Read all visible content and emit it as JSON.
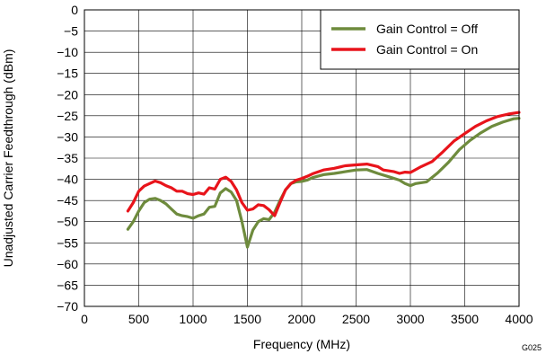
{
  "figure_id": "G025",
  "chart_data": {
    "type": "line",
    "title": "",
    "xlabel": "Frequency (MHz)",
    "ylabel": "Unadjusted Carrier Feedthrough (dBm)",
    "xlim": [
      0,
      4000
    ],
    "ylim": [
      -70,
      0
    ],
    "x_ticks": [
      0,
      500,
      1000,
      1500,
      2000,
      2500,
      3000,
      3500,
      4000
    ],
    "y_ticks": [
      0,
      -5,
      -10,
      -15,
      -20,
      -25,
      -30,
      -35,
      -40,
      -45,
      -50,
      -55,
      -60,
      -65,
      -70
    ],
    "y_tick_labels": [
      "0",
      "−5",
      "−10",
      "−15",
      "−20",
      "−25",
      "−30",
      "−35",
      "−40",
      "−45",
      "−50",
      "−55",
      "−60",
      "−65",
      "−70"
    ],
    "grid": true,
    "legend_position": "top-right",
    "series": [
      {
        "name": "Gain Control = Off",
        "color": "#6e8b3d",
        "points": [
          [
            400,
            -51.8
          ],
          [
            450,
            -50
          ],
          [
            500,
            -47.5
          ],
          [
            550,
            -45.5
          ],
          [
            600,
            -44.7
          ],
          [
            650,
            -44.5
          ],
          [
            700,
            -45
          ],
          [
            750,
            -45.8
          ],
          [
            800,
            -47
          ],
          [
            850,
            -48.2
          ],
          [
            900,
            -48.6
          ],
          [
            950,
            -48.8
          ],
          [
            1000,
            -49.2
          ],
          [
            1050,
            -48.6
          ],
          [
            1100,
            -48.2
          ],
          [
            1150,
            -46.6
          ],
          [
            1200,
            -46.4
          ],
          [
            1250,
            -43.2
          ],
          [
            1300,
            -42.2
          ],
          [
            1350,
            -43
          ],
          [
            1400,
            -45
          ],
          [
            1450,
            -50
          ],
          [
            1500,
            -56
          ],
          [
            1550,
            -52
          ],
          [
            1600,
            -50
          ],
          [
            1650,
            -49.3
          ],
          [
            1700,
            -49.5
          ],
          [
            1750,
            -47.8
          ],
          [
            1800,
            -45
          ],
          [
            1850,
            -42.5
          ],
          [
            1900,
            -41
          ],
          [
            1950,
            -40.6
          ],
          [
            2000,
            -40.5
          ],
          [
            2050,
            -40.2
          ],
          [
            2100,
            -39.6
          ],
          [
            2200,
            -38.9
          ],
          [
            2300,
            -38.6
          ],
          [
            2400,
            -38.2
          ],
          [
            2500,
            -37.8
          ],
          [
            2600,
            -37.7
          ],
          [
            2700,
            -38.6
          ],
          [
            2800,
            -39.4
          ],
          [
            2900,
            -40.2
          ],
          [
            2950,
            -41
          ],
          [
            3000,
            -41.5
          ],
          [
            3050,
            -41
          ],
          [
            3150,
            -40.6
          ],
          [
            3250,
            -38.5
          ],
          [
            3350,
            -36
          ],
          [
            3450,
            -33
          ],
          [
            3550,
            -30.8
          ],
          [
            3650,
            -29
          ],
          [
            3750,
            -27.5
          ],
          [
            3850,
            -26.5
          ],
          [
            3950,
            -25.7
          ],
          [
            4000,
            -25.6
          ]
        ]
      },
      {
        "name": "Gain Control = On",
        "color": "#e8141b",
        "points": [
          [
            400,
            -47.5
          ],
          [
            450,
            -45.5
          ],
          [
            500,
            -42.8
          ],
          [
            550,
            -41.6
          ],
          [
            600,
            -41
          ],
          [
            650,
            -40.4
          ],
          [
            700,
            -40.8
          ],
          [
            750,
            -41.5
          ],
          [
            800,
            -42
          ],
          [
            850,
            -42.8
          ],
          [
            900,
            -42.8
          ],
          [
            950,
            -43.4
          ],
          [
            1000,
            -43.6
          ],
          [
            1050,
            -43.2
          ],
          [
            1100,
            -43.5
          ],
          [
            1150,
            -42
          ],
          [
            1200,
            -42.3
          ],
          [
            1250,
            -40
          ],
          [
            1300,
            -39.5
          ],
          [
            1350,
            -40.5
          ],
          [
            1400,
            -42.5
          ],
          [
            1450,
            -45.5
          ],
          [
            1500,
            -47.3
          ],
          [
            1550,
            -47
          ],
          [
            1600,
            -46
          ],
          [
            1650,
            -46.2
          ],
          [
            1700,
            -47.2
          ],
          [
            1750,
            -48.6
          ],
          [
            1800,
            -45.5
          ],
          [
            1850,
            -42.5
          ],
          [
            1900,
            -41
          ],
          [
            1950,
            -40.2
          ],
          [
            2000,
            -39.8
          ],
          [
            2050,
            -39.3
          ],
          [
            2100,
            -38.7
          ],
          [
            2200,
            -37.8
          ],
          [
            2300,
            -37.4
          ],
          [
            2400,
            -36.8
          ],
          [
            2500,
            -36.6
          ],
          [
            2600,
            -36.4
          ],
          [
            2700,
            -37
          ],
          [
            2750,
            -37.8
          ],
          [
            2850,
            -38.2
          ],
          [
            2900,
            -38.6
          ],
          [
            2950,
            -38.3
          ],
          [
            3000,
            -38.4
          ],
          [
            3100,
            -37
          ],
          [
            3200,
            -35.8
          ],
          [
            3300,
            -33.5
          ],
          [
            3400,
            -31
          ],
          [
            3500,
            -29.2
          ],
          [
            3600,
            -27.5
          ],
          [
            3700,
            -26.2
          ],
          [
            3800,
            -25.2
          ],
          [
            3900,
            -24.6
          ],
          [
            4000,
            -24.2
          ]
        ]
      }
    ]
  }
}
